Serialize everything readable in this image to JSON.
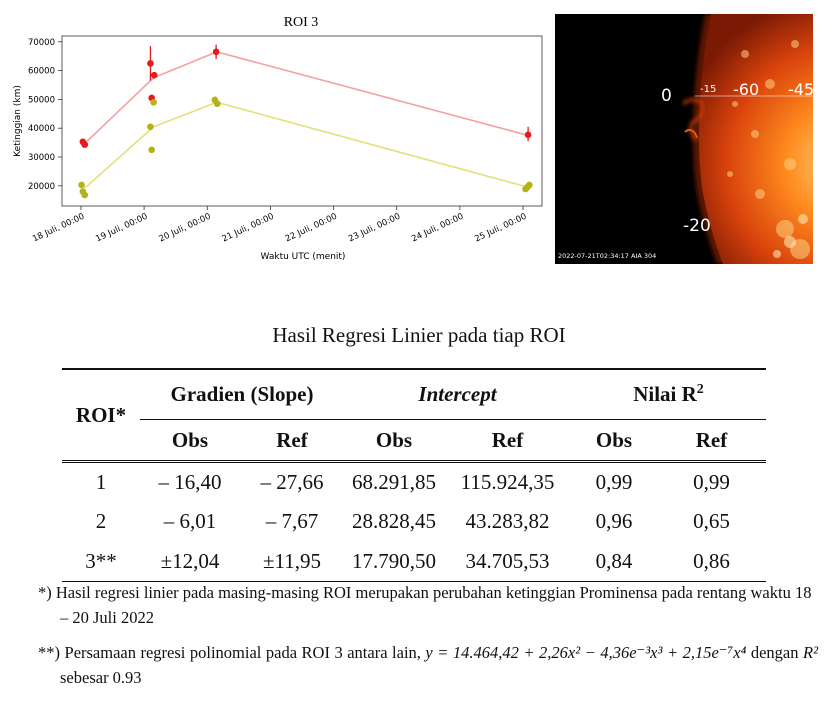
{
  "chart_data": {
    "type": "line",
    "title": "ROI 3",
    "ylabel": "Ketinggian (km)",
    "xlabel": "Waktu UTC (menit)",
    "ylim": [
      13000,
      72000
    ],
    "xlim": [
      -0.3,
      7.3
    ],
    "yticks": [
      "20000",
      "30000",
      "40000",
      "50000",
      "60000",
      "70000"
    ],
    "ytick_values": [
      20000,
      30000,
      40000,
      50000,
      60000,
      70000
    ],
    "xticks": [
      "18 Juli, 00:00",
      "19 Juli, 00:00",
      "20 Juli, 00:00",
      "21 Juli, 00:00",
      "22 Juli, 00:00",
      "23 Juli, 00:00",
      "24 Juli, 00:00",
      "25 Juli, 00:00"
    ],
    "xtick_values": [
      0,
      1,
      2,
      3,
      4,
      5,
      6,
      7
    ],
    "series": [
      {
        "color": "#e8181c",
        "fit_color": "#f4a0a0",
        "fit": [
          [
            0.05,
            34500
          ],
          [
            1.15,
            57500
          ],
          [
            2.15,
            66500
          ],
          [
            7.08,
            37500
          ]
        ],
        "points": [
          [
            0.03,
            35300
          ],
          [
            0.06,
            34300
          ],
          [
            1.1,
            62500
          ],
          [
            1.12,
            50500
          ],
          [
            1.16,
            58400
          ],
          [
            2.14,
            66500
          ],
          [
            7.08,
            37700
          ]
        ],
        "errors": [
          [
            1.1,
            56500,
            68500
          ],
          [
            2.14,
            64000,
            69000
          ],
          [
            7.08,
            35500,
            40500
          ]
        ]
      },
      {
        "color": "#b4b214",
        "fit_color": "#e2e07a",
        "fit": [
          [
            0.05,
            19000
          ],
          [
            1.15,
            40500
          ],
          [
            2.15,
            49000
          ],
          [
            7.08,
            19500
          ]
        ],
        "points": [
          [
            0.01,
            20300
          ],
          [
            0.03,
            18000
          ],
          [
            0.06,
            16800
          ],
          [
            1.1,
            40500
          ],
          [
            1.12,
            32500
          ],
          [
            1.15,
            49000
          ],
          [
            2.12,
            49800
          ],
          [
            2.16,
            48500
          ],
          [
            7.04,
            18900
          ],
          [
            7.07,
            19600
          ],
          [
            7.1,
            20300
          ]
        ],
        "errors": [
          [
            2.13,
            47500,
            51000
          ]
        ]
      }
    ]
  },
  "image_panel": {
    "labels": {
      "zero": "0",
      "tick15": "-15",
      "tick60": "-60",
      "tick45": "-45",
      "minus20": "-20"
    },
    "timestamp": "2022-07-21T02:34:17 AIA 304"
  },
  "table": {
    "caption": "Hasil Regresi Linier pada tiap ROI",
    "header": {
      "roi": "ROI*",
      "slope": "Gradien (Slope)",
      "intercept": "Intercept",
      "r2": "Nilai R",
      "r2_sup": "2",
      "obs": "Obs",
      "ref": "Ref"
    },
    "rows": [
      {
        "roi": "1",
        "slope_obs": "– 16,40",
        "slope_ref": "– 27,66",
        "int_obs": "68.291,85",
        "int_ref": "115.924,35",
        "r2_obs": "0,99",
        "r2_ref": "0,99"
      },
      {
        "roi": "2",
        "slope_obs": "– 6,01",
        "slope_ref": "– 7,67",
        "int_obs": "28.828,45",
        "int_ref": "43.283,82",
        "r2_obs": "0,96",
        "r2_ref": "0,65"
      },
      {
        "roi": "3**",
        "slope_obs": "±12,04",
        "slope_ref": "±11,95",
        "int_obs": "17.790,50",
        "int_ref": "34.705,53",
        "r2_obs": "0,84",
        "r2_ref": "0,86"
      }
    ]
  },
  "notes": {
    "note1_mark": "*)",
    "note1": "Hasil regresi linier pada masing-masing ROI merupakan perubahan ketinggian Prominensa pada rentang waktu 18 – 20 Juli 2022",
    "note2_mark": "**)",
    "note2_text": "Persamaan regresi polinomial pada ROI 3 antara lain,",
    "note2_eq": "y = 14.464,42 + 2,26x² − 4,36e⁻³x³ + 2,15e⁻⁷x⁴",
    "note2_mid": "dengan",
    "note2_r2": "R²",
    "note2_end": "sebesar 0.93"
  }
}
